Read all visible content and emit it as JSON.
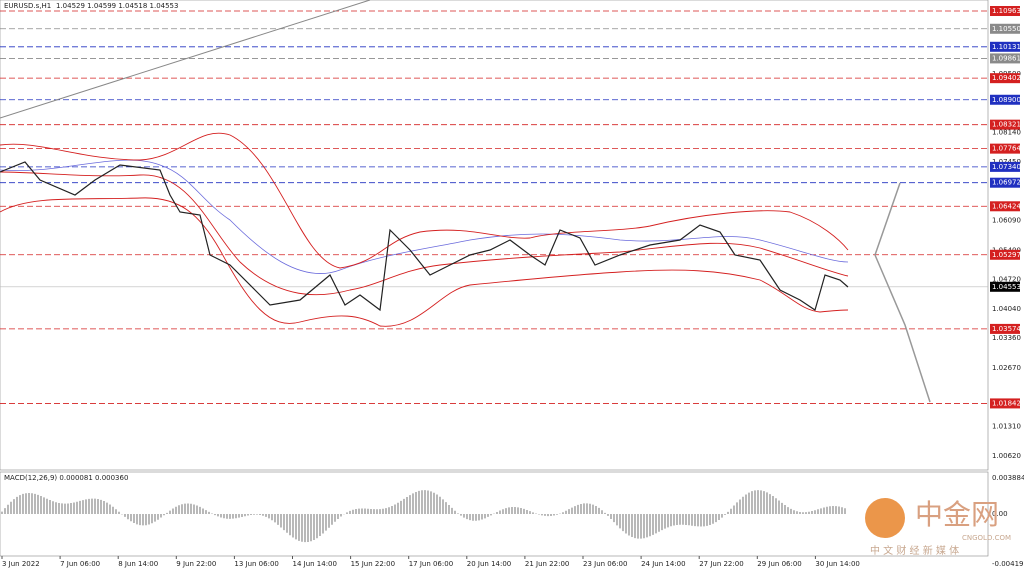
{
  "header": {
    "symbol": "EURUSD.s,H1",
    "ohlc": "1.04529 1.04599 1.04518 1.04553"
  },
  "price_axis": {
    "labels": [
      {
        "text": "1.10963",
        "style": "red"
      },
      {
        "text": "1.10550",
        "style": "gray"
      },
      {
        "text": "1.10131",
        "style": "blue"
      },
      {
        "text": "1.09861",
        "style": "gray"
      },
      {
        "text": "1.09500",
        "style": "plain"
      },
      {
        "text": "1.09402",
        "style": "red"
      },
      {
        "text": "1.08900",
        "style": "blue"
      },
      {
        "text": "1.08321",
        "style": "red"
      },
      {
        "text": "1.08140",
        "style": "plain"
      },
      {
        "text": "1.07764",
        "style": "red"
      },
      {
        "text": "1.07450",
        "style": "plain"
      },
      {
        "text": "1.07340",
        "style": "blue"
      },
      {
        "text": "1.06972",
        "style": "blue"
      },
      {
        "text": "1.06424",
        "style": "red"
      },
      {
        "text": "1.06090",
        "style": "plain"
      },
      {
        "text": "1.05400",
        "style": "plain"
      },
      {
        "text": "1.05297",
        "style": "red"
      },
      {
        "text": "1.04720",
        "style": "plain"
      },
      {
        "text": "1.04553",
        "style": "current"
      },
      {
        "text": "1.04040",
        "style": "plain"
      },
      {
        "text": "1.03574",
        "style": "red"
      },
      {
        "text": "1.03360",
        "style": "plain"
      },
      {
        "text": "1.02670",
        "style": "plain"
      },
      {
        "text": "1.01842",
        "style": "red"
      },
      {
        "text": "1.01310",
        "style": "plain"
      },
      {
        "text": "1.00620",
        "style": "plain"
      }
    ]
  },
  "macd": {
    "label": "MACD(12,26,9) 0.000081 0.000360",
    "axis": [
      "0.003884",
      "0.00",
      "-0.004191"
    ]
  },
  "time_axis": [
    "3 Jun 2022",
    "7 Jun 06:00",
    "8 Jun 14:00",
    "9 Jun 22:00",
    "13 Jun 06:00",
    "14 Jun 14:00",
    "15 Jun 22:00",
    "17 Jun 06:00",
    "20 Jun 14:00",
    "21 Jun 22:00",
    "23 Jun 06:00",
    "24 Jun 14:00",
    "27 Jun 22:00",
    "29 Jun 06:00",
    "30 Jun 14:00"
  ],
  "watermark": {
    "brand": "中金网",
    "domain": "CNGOLD.COM",
    "tagline": "中 文 财 经 新 媒 体"
  }
}
